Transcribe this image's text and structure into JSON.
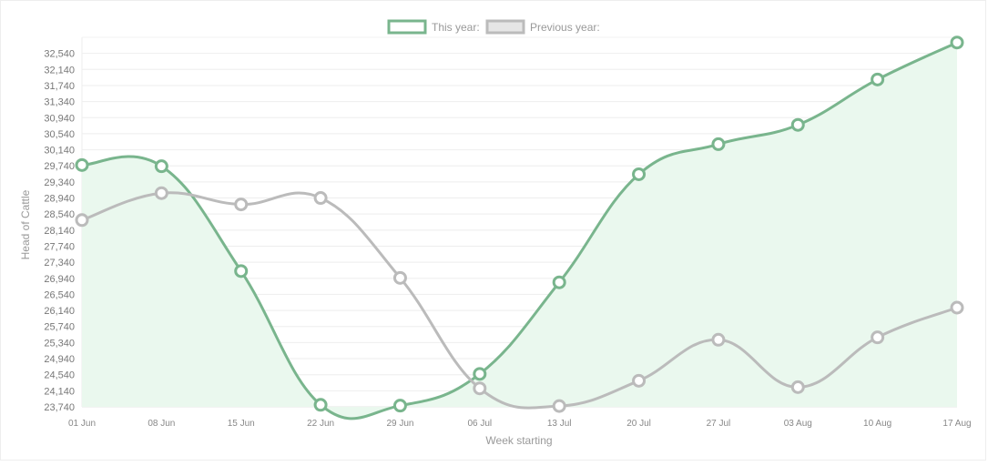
{
  "chart_data": {
    "type": "line",
    "title": "",
    "xlabel": "Week starting",
    "ylabel": "Head of Cattle",
    "categories": [
      "01 Jun",
      "08 Jun",
      "15 Jun",
      "22 Jun",
      "29 Jun",
      "06 Jul",
      "13 Jul",
      "20 Jul",
      "27 Jul",
      "03 Aug",
      "10 Aug",
      "17 Aug"
    ],
    "y_ticks": [
      "23,740",
      "24,140",
      "24,540",
      "24,940",
      "25,340",
      "25,740",
      "26,140",
      "26,540",
      "26,940",
      "27,340",
      "27,740",
      "28,140",
      "28,540",
      "28,940",
      "29,340",
      "29,740",
      "30,140",
      "30,540",
      "30,940",
      "31,340",
      "31,740",
      "32,140",
      "32,540"
    ],
    "ylim": [
      23740,
      32940
    ],
    "grid": true,
    "legend": "top-center",
    "series": [
      {
        "name": "This year:",
        "color": "#79b58d",
        "fill": "#eaf8ee",
        "values": [
          29760,
          29730,
          27120,
          23790,
          23770,
          24560,
          26840,
          29530,
          30280,
          30760,
          31890,
          32810
        ]
      },
      {
        "name": "Previous year:",
        "color": "#bbbbbb",
        "fill": "#e6e6e6",
        "values": [
          28390,
          29060,
          28780,
          28940,
          26950,
          24200,
          23760,
          24390,
          25410,
          24230,
          25470,
          26210
        ]
      }
    ]
  }
}
